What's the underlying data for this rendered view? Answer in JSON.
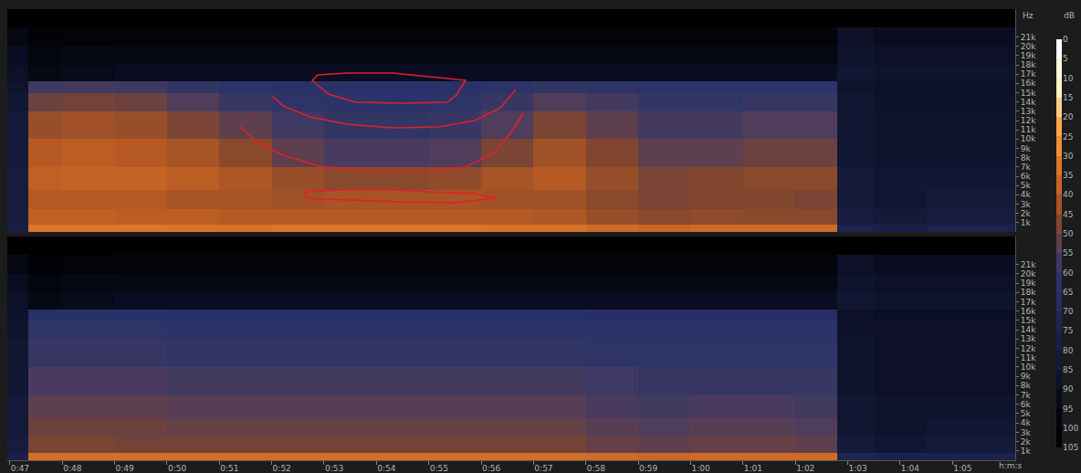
{
  "chart_data": {
    "type": "heatmap",
    "x_label": "h:m:s",
    "y_label": "Hz",
    "grid": false,
    "xlim": [
      46.95,
      66.2
    ],
    "xticks": [
      {
        "value": 47,
        "label": "0:47"
      },
      {
        "value": 48,
        "label": "0:48"
      },
      {
        "value": 49,
        "label": "0:49"
      },
      {
        "value": 50,
        "label": "0:50"
      },
      {
        "value": 51,
        "label": "0:51"
      },
      {
        "value": 52,
        "label": "0:52"
      },
      {
        "value": 53,
        "label": "0:53"
      },
      {
        "value": 54,
        "label": "0:54"
      },
      {
        "value": 55,
        "label": "0:55"
      },
      {
        "value": 56,
        "label": "0:56"
      },
      {
        "value": 57,
        "label": "0:57"
      },
      {
        "value": 58,
        "label": "0:58"
      },
      {
        "value": 59,
        "label": "0:59"
      },
      {
        "value": 60,
        "label": "1:00"
      },
      {
        "value": 61,
        "label": "1:01"
      },
      {
        "value": 62,
        "label": "1:02"
      },
      {
        "value": 63,
        "label": "1:03"
      },
      {
        "value": 64,
        "label": "1:04"
      },
      {
        "value": 65,
        "label": "1:05"
      }
    ],
    "ylim": [
      0,
      24000
    ],
    "yticks": [
      {
        "value": 1000,
        "label": "1k"
      },
      {
        "value": 2000,
        "label": "2k"
      },
      {
        "value": 3000,
        "label": "3k"
      },
      {
        "value": 4000,
        "label": "4k"
      },
      {
        "value": 5000,
        "label": "5k"
      },
      {
        "value": 6000,
        "label": "6k"
      },
      {
        "value": 7000,
        "label": "7k"
      },
      {
        "value": 8000,
        "label": "8k"
      },
      {
        "value": 9000,
        "label": "9k"
      },
      {
        "value": 10000,
        "label": "10k"
      },
      {
        "value": 11000,
        "label": "11k"
      },
      {
        "value": 12000,
        "label": "12k"
      },
      {
        "value": 13000,
        "label": "13k"
      },
      {
        "value": 14000,
        "label": "14k"
      },
      {
        "value": 15000,
        "label": "15k"
      },
      {
        "value": 16000,
        "label": "16k"
      },
      {
        "value": 17000,
        "label": "17k"
      },
      {
        "value": 18000,
        "label": "18k"
      },
      {
        "value": 19000,
        "label": "19k"
      },
      {
        "value": 20000,
        "label": "20k"
      },
      {
        "value": 21000,
        "label": "21k"
      }
    ],
    "x_bins": [
      46.95,
      47.35,
      48,
      49,
      50,
      51,
      52,
      53,
      54,
      55,
      56,
      57,
      58,
      59,
      60,
      61,
      62,
      62.8,
      63.5,
      64.5,
      66.2
    ],
    "y_bins": [
      0,
      800,
      2500,
      4500,
      7000,
      10000,
      13000,
      15000,
      16200,
      18000,
      20000,
      22000,
      24000
    ],
    "channels": [
      {
        "cells": [
          [
            75,
            30,
            30,
            30,
            31,
            31,
            30,
            30,
            30,
            30,
            31,
            31,
            33,
            34,
            33,
            33,
            33,
            72,
            74,
            72
          ],
          [
            78,
            36,
            36,
            37,
            37,
            38,
            38,
            38,
            38,
            38,
            38,
            39,
            42,
            44,
            43,
            44,
            44,
            78,
            80,
            78
          ],
          [
            78,
            38,
            38,
            38,
            40,
            40,
            41,
            40,
            40,
            40,
            41,
            41,
            44,
            46,
            45,
            45,
            46,
            80,
            82,
            80
          ],
          [
            78,
            36,
            35,
            35,
            37,
            39,
            42,
            44,
            44,
            43,
            40,
            38,
            42,
            46,
            45,
            44,
            44,
            80,
            82,
            82
          ],
          [
            80,
            38,
            37,
            38,
            40,
            44,
            50,
            53,
            53,
            52,
            46,
            41,
            45,
            50,
            50,
            48,
            48,
            82,
            84,
            84
          ],
          [
            80,
            42,
            41,
            42,
            46,
            50,
            55,
            57,
            57,
            56,
            52,
            46,
            50,
            54,
            54,
            52,
            52,
            82,
            84,
            84
          ],
          [
            82,
            48,
            47,
            48,
            52,
            56,
            58,
            60,
            60,
            59,
            56,
            52,
            54,
            57,
            57,
            56,
            56,
            82,
            85,
            85
          ],
          [
            84,
            55,
            54,
            55,
            57,
            60,
            62,
            62,
            62,
            62,
            60,
            57,
            58,
            60,
            60,
            60,
            60,
            84,
            86,
            86
          ],
          [
            86,
            92,
            90,
            88,
            88,
            88,
            88,
            88,
            88,
            88,
            88,
            88,
            88,
            88,
            88,
            88,
            88,
            82,
            84,
            84
          ],
          [
            88,
            94,
            92,
            92,
            92,
            92,
            92,
            92,
            92,
            92,
            92,
            92,
            92,
            92,
            92,
            92,
            92,
            84,
            86,
            86
          ],
          [
            92,
            97,
            96,
            95,
            95,
            95,
            95,
            95,
            95,
            95,
            95,
            95,
            95,
            95,
            95,
            95,
            95,
            86,
            88,
            88
          ],
          [
            100,
            100,
            100,
            100,
            100,
            100,
            100,
            100,
            100,
            100,
            100,
            100,
            100,
            100,
            100,
            100,
            100,
            100,
            100,
            100
          ]
        ]
      },
      {
        "cells": [
          [
            74,
            32,
            32,
            32,
            32,
            32,
            32,
            32,
            32,
            32,
            32,
            32,
            33,
            34,
            33,
            33,
            33,
            70,
            72,
            72
          ],
          [
            78,
            46,
            46,
            47,
            47,
            47,
            47,
            47,
            47,
            47,
            47,
            47,
            49,
            50,
            49,
            49,
            50,
            80,
            82,
            80
          ],
          [
            80,
            48,
            48,
            48,
            49,
            49,
            49,
            49,
            49,
            49,
            49,
            49,
            51,
            52,
            51,
            51,
            52,
            82,
            84,
            82
          ],
          [
            80,
            50,
            50,
            50,
            51,
            51,
            51,
            51,
            51,
            51,
            51,
            51,
            53,
            54,
            53,
            53,
            54,
            82,
            84,
            84
          ],
          [
            82,
            53,
            53,
            53,
            54,
            54,
            54,
            54,
            54,
            54,
            54,
            54,
            55,
            56,
            56,
            56,
            56,
            84,
            86,
            86
          ],
          [
            82,
            56,
            56,
            56,
            57,
            57,
            57,
            57,
            57,
            57,
            57,
            57,
            58,
            59,
            59,
            58,
            58,
            84,
            86,
            86
          ],
          [
            84,
            59,
            59,
            59,
            60,
            60,
            60,
            60,
            60,
            60,
            60,
            60,
            61,
            61,
            61,
            61,
            61,
            85,
            86,
            86
          ],
          [
            85,
            62,
            62,
            62,
            63,
            63,
            63,
            63,
            63,
            63,
            63,
            63,
            64,
            64,
            64,
            64,
            64,
            86,
            87,
            87
          ],
          [
            86,
            92,
            90,
            88,
            88,
            88,
            88,
            88,
            88,
            88,
            88,
            88,
            88,
            88,
            88,
            88,
            88,
            82,
            84,
            84
          ],
          [
            88,
            94,
            92,
            92,
            92,
            92,
            92,
            92,
            92,
            92,
            92,
            92,
            92,
            92,
            92,
            92,
            92,
            84,
            86,
            86
          ],
          [
            92,
            97,
            96,
            95,
            95,
            95,
            95,
            95,
            95,
            95,
            95,
            95,
            95,
            95,
            95,
            95,
            95,
            86,
            88,
            88
          ],
          [
            100,
            100,
            100,
            100,
            100,
            100,
            100,
            100,
            100,
            100,
            100,
            100,
            100,
            100,
            100,
            100,
            100,
            100,
            100,
            100
          ]
        ]
      }
    ],
    "color_bar": {
      "title": "dB",
      "range": [
        0,
        105
      ],
      "ticks": [
        0,
        5,
        10,
        15,
        20,
        25,
        30,
        35,
        40,
        45,
        50,
        55,
        60,
        65,
        70,
        75,
        80,
        85,
        90,
        95,
        100,
        105
      ]
    }
  }
}
